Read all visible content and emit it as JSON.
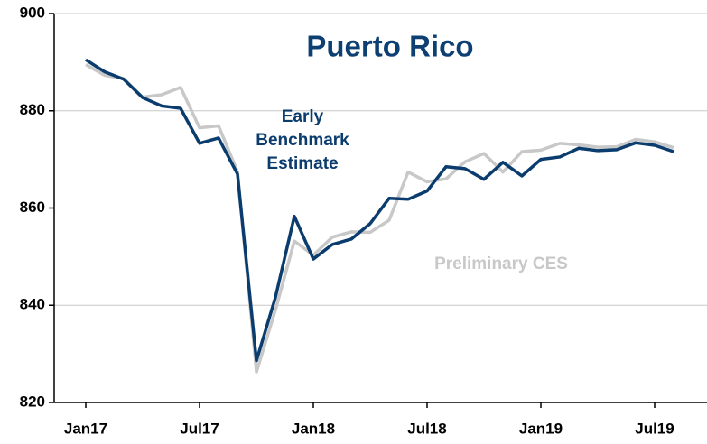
{
  "chart_data": {
    "type": "line",
    "title": "Puerto Rico",
    "categories": [
      "Jan17",
      null,
      null,
      null,
      null,
      null,
      "Jul17",
      null,
      null,
      null,
      null,
      null,
      "Jan18",
      null,
      null,
      null,
      null,
      null,
      "Jul18",
      null,
      null,
      null,
      null,
      null,
      "Jan19",
      null,
      null,
      null,
      null,
      null,
      "Jul19",
      null
    ],
    "series": [
      {
        "name": "Preliminary CES",
        "color": "#c8c8c8",
        "values": [
          889.5,
          887.3,
          886.6,
          882.8,
          883.3,
          884.8,
          876.5,
          876.9,
          867.5,
          826.3,
          839,
          853.2,
          850.3,
          854,
          855.1,
          855,
          857.5,
          867.4,
          865.4,
          866,
          869.5,
          871.2,
          867.4,
          871.6,
          871.9,
          873.3,
          873,
          872.5,
          872.6,
          874.1,
          873.6,
          872.4
        ]
      },
      {
        "name": "Early Benchmark Estimate",
        "color": "#0b3c6e",
        "values": [
          890.5,
          888,
          886.5,
          882.7,
          881,
          880.5,
          873.3,
          874.4,
          867,
          828.6,
          841.6,
          858.3,
          849.5,
          852.5,
          853.6,
          856.8,
          862,
          861.8,
          863.5,
          868.5,
          868.1,
          865.9,
          869.4,
          866.6,
          870,
          870.5,
          872.3,
          871.8,
          872,
          873.4,
          872.9,
          871.6
        ]
      }
    ],
    "ylim": [
      820,
      900
    ],
    "yticks": [
      820,
      840,
      860,
      880,
      900
    ],
    "grid": true
  }
}
